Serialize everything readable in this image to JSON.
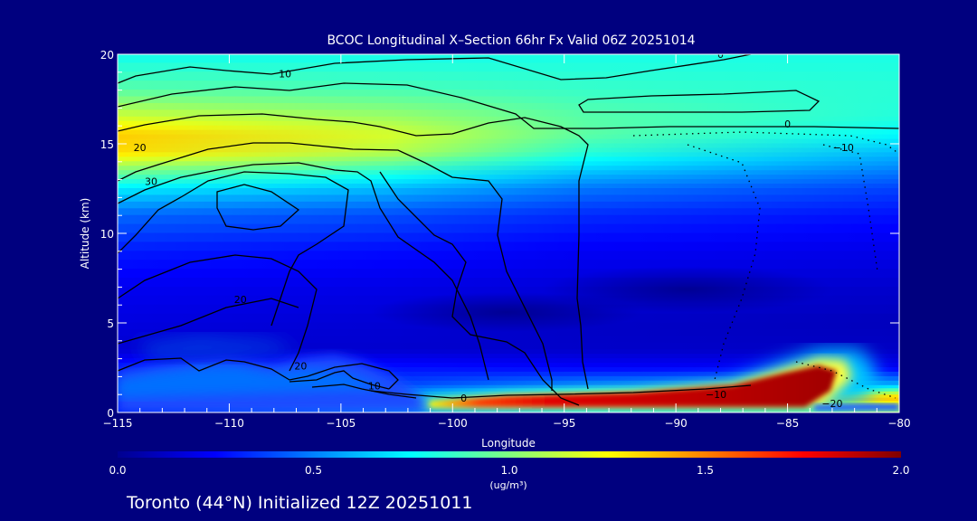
{
  "chart_data": {
    "type": "heatmap",
    "title": "BCOC Longitudinal X–Section 66hr  Fx Valid 06Z 20251014",
    "xlabel": "Longitude",
    "ylabel": "Altitude (km)",
    "xlim": [
      -115,
      -80
    ],
    "ylim": [
      0,
      20
    ],
    "xticks": [
      -115,
      -110,
      -105,
      -100,
      -95,
      -90,
      -85,
      -80
    ],
    "xtick_labels": [
      "−115",
      "−110",
      "−105",
      "−100",
      "−95",
      "−90",
      "−85",
      "−80"
    ],
    "yticks": [
      0,
      5,
      10,
      15,
      20
    ],
    "ytick_labels": [
      "0",
      "5",
      "10",
      "15",
      "20"
    ],
    "colorbar": {
      "min": 0.0,
      "max": 2.0,
      "ticks": [
        0.0,
        0.5,
        1.0,
        1.5,
        2.0
      ],
      "tick_labels": [
        "0.0",
        "0.5",
        "1.0",
        "1.5",
        "2.0"
      ],
      "unit_label": "(ug/m³)",
      "colormap": [
        "#00008f",
        "#0000ff",
        "#0080ff",
        "#00ffff",
        "#80ff80",
        "#ffff00",
        "#ff8000",
        "#ff0000",
        "#800000"
      ]
    },
    "concentration_profile": {
      "altitude_km": [
        20,
        18,
        16.5,
        15.5,
        14.5,
        13.5,
        12.5,
        11,
        9,
        7,
        5,
        3.5,
        2.5,
        1.5,
        0.8,
        0
      ],
      "west_ug_m3": [
        0.78,
        0.92,
        1.15,
        1.35,
        1.32,
        1.0,
        0.72,
        0.45,
        0.3,
        0.22,
        0.18,
        0.15,
        0.3,
        0.3,
        0.3,
        0.3
      ],
      "east_ug_m3": [
        0.8,
        0.83,
        0.82,
        0.75,
        0.62,
        0.5,
        0.38,
        0.28,
        0.2,
        0.14,
        0.1,
        0.12,
        0.22,
        0.6,
        1.4,
        1.0
      ]
    },
    "surface_plume": [
      {
        "lon": -101,
        "alt_km": 0.6,
        "value": 0.9
      },
      {
        "lon": -95,
        "alt_km": 0.6,
        "value": 1.95
      },
      {
        "lon": -90,
        "alt_km": 0.8,
        "value": 2.0
      },
      {
        "lon": -85,
        "alt_km": 1.3,
        "value": 2.0
      },
      {
        "lon": -83,
        "alt_km": 2.0,
        "value": 1.2
      }
    ],
    "contour_labels": [
      {
        "text": "0",
        "lon": -88,
        "alt_km": 19.8
      },
      {
        "text": "10",
        "lon": -107.5,
        "alt_km": 18.7
      },
      {
        "text": "0",
        "lon": -85,
        "alt_km": 15.9
      },
      {
        "text": "−10",
        "lon": -82.5,
        "alt_km": 14.6
      },
      {
        "text": "20",
        "lon": -114,
        "alt_km": 14.6
      },
      {
        "text": "30",
        "lon": -113.5,
        "alt_km": 12.7
      },
      {
        "text": "20",
        "lon": -109.5,
        "alt_km": 6.1
      },
      {
        "text": "20",
        "lon": -106.8,
        "alt_km": 2.4
      },
      {
        "text": "10",
        "lon": -103.5,
        "alt_km": 1.3
      },
      {
        "text": "0",
        "lon": -99.5,
        "alt_km": 0.6
      },
      {
        "text": "−10",
        "lon": -88.2,
        "alt_km": 0.8
      },
      {
        "text": "−20",
        "lon": -83,
        "alt_km": 0.3
      }
    ]
  },
  "footer": {
    "caption": "Toronto (44°N) Initialized 12Z 20251011"
  }
}
